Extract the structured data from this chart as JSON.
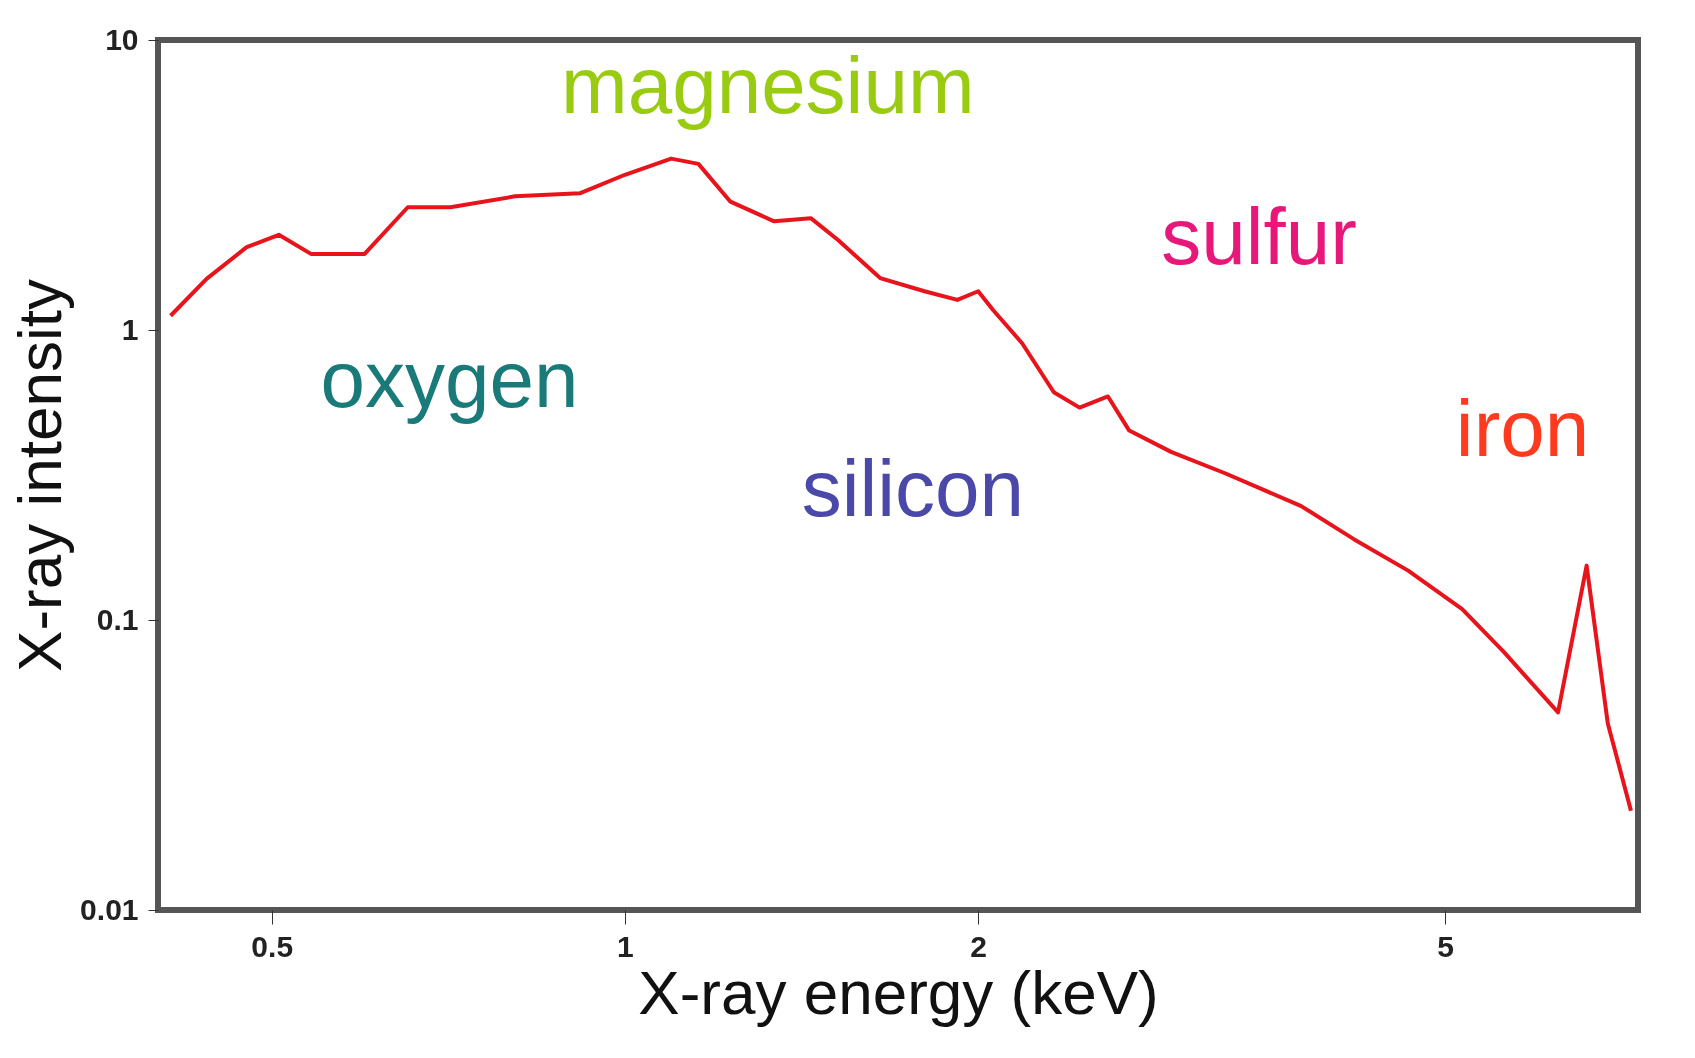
{
  "chart_data": {
    "type": "line",
    "xlabel": "X-ray energy (keV)",
    "ylabel": "X-ray intensity",
    "log": "xy",
    "grid": false,
    "marker": "none",
    "line_style": "solid",
    "xlim": [
      0.4,
      7.3
    ],
    "xticks": [
      0.5,
      1,
      2,
      5
    ],
    "ylim": [
      0.01,
      10
    ],
    "yticks": [
      0.01,
      0.1,
      1,
      10
    ],
    "x": [
      0.41,
      0.44,
      0.476,
      0.507,
      0.54,
      0.6,
      0.653,
      0.71,
      0.806,
      0.915,
      1.0,
      1.095,
      1.155,
      1.23,
      1.34,
      1.44,
      1.52,
      1.65,
      1.8,
      1.92,
      2.0,
      2.06,
      2.18,
      2.32,
      2.44,
      2.58,
      2.69,
      2.92,
      3.25,
      3.77,
      4.18,
      4.65,
      5.17,
      5.62,
      6.24,
      6.6,
      6.88,
      7.2
    ],
    "series": [
      {
        "color": "#e8141c",
        "values": [
          1.12,
          1.5,
          1.93,
          2.13,
          1.83,
          1.83,
          2.65,
          2.65,
          2.89,
          2.96,
          3.43,
          3.9,
          3.74,
          2.77,
          2.37,
          2.43,
          2.04,
          1.51,
          1.36,
          1.27,
          1.36,
          1.17,
          0.9,
          0.61,
          0.54,
          0.59,
          0.45,
          0.38,
          0.32,
          0.247,
          0.19,
          0.148,
          0.109,
          0.077,
          0.048,
          0.154,
          0.044,
          0.022
        ]
      }
    ],
    "annotations": [
      "oxygen",
      "magnesium",
      "silicon",
      "sulfur",
      "iron"
    ]
  }
}
